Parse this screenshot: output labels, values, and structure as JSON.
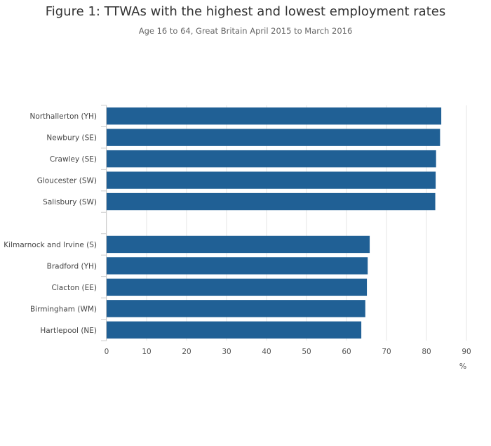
{
  "chart_data": {
    "type": "bar",
    "orientation": "horizontal",
    "title": "Figure 1: TTWAs with the highest and lowest employment rates",
    "subtitle": "Age 16 to 64, Great Britain April 2015 to March 2016",
    "categories": [
      "Northallerton (YH)",
      "Newbury (SE)",
      "Crawley (SE)",
      "Gloucester (SW)",
      "Salisbury (SW)",
      "",
      "Kilmarnock and Irvine (S)",
      "Bradford (YH)",
      "Clacton (EE)",
      "Birmingham (WM)",
      "Hartlepool (NE)"
    ],
    "values": [
      83.7,
      83.4,
      82.4,
      82.3,
      82.2,
      null,
      65.8,
      65.3,
      65.1,
      64.7,
      63.7
    ],
    "xlim": [
      0,
      90
    ],
    "xticks": [
      "0",
      "10",
      "20",
      "30",
      "40",
      "50",
      "60",
      "70",
      "80",
      "90"
    ],
    "xunit": "%",
    "bar_color": "#206095",
    "grid_color": "#e6e6e6",
    "grid": true,
    "legend": "none"
  }
}
